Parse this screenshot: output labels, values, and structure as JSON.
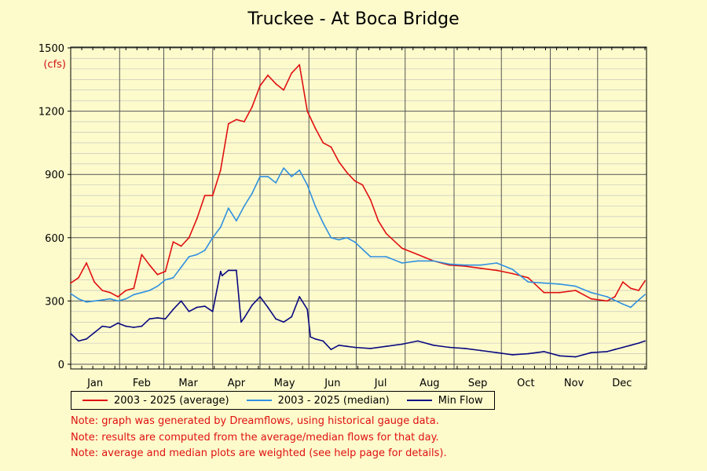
{
  "chart_data": {
    "type": "line",
    "title": "Truckee - At Boca Bridge",
    "ylabel": "(cfs)",
    "ylim": [
      0,
      1500
    ],
    "yticks": [
      0,
      300,
      600,
      900,
      1200,
      1500
    ],
    "x_domain": [
      "Jan 1",
      "Dec 31"
    ],
    "months": [
      "Jan",
      "Feb",
      "Mar",
      "Apr",
      "May",
      "Jun",
      "Jul",
      "Aug",
      "Sep",
      "Oct",
      "Nov",
      "Dec"
    ],
    "grid": true,
    "legend_position": "bottom",
    "series": [
      {
        "name": "2003 - 2025 (average)",
        "color": "#e01010",
        "x_day": [
          0,
          5,
          10,
          15,
          20,
          25,
          30,
          35,
          40,
          45,
          50,
          55,
          60,
          65,
          70,
          75,
          80,
          85,
          90,
          95,
          100,
          105,
          110,
          115,
          120,
          125,
          130,
          135,
          140,
          145,
          150,
          155,
          160,
          165,
          170,
          175,
          180,
          185,
          190,
          195,
          200,
          210,
          220,
          230,
          240,
          250,
          260,
          270,
          280,
          290,
          300,
          310,
          320,
          330,
          340,
          345,
          350,
          355,
          360,
          364
        ],
        "values": [
          385,
          410,
          480,
          390,
          350,
          340,
          320,
          350,
          360,
          520,
          470,
          425,
          440,
          580,
          560,
          600,
          690,
          800,
          800,
          920,
          1140,
          1160,
          1150,
          1220,
          1320,
          1370,
          1330,
          1300,
          1380,
          1420,
          1200,
          1120,
          1050,
          1030,
          960,
          910,
          870,
          850,
          780,
          680,
          620,
          550,
          520,
          490,
          470,
          465,
          455,
          445,
          430,
          410,
          340,
          340,
          350,
          310,
          300,
          320,
          390,
          360,
          350,
          395
        ]
      },
      {
        "name": "2003 - 2025 (median)",
        "color": "#3090e0",
        "x_day": [
          0,
          5,
          10,
          15,
          20,
          25,
          30,
          35,
          40,
          45,
          50,
          55,
          60,
          65,
          70,
          75,
          80,
          85,
          90,
          95,
          100,
          105,
          110,
          115,
          120,
          125,
          130,
          135,
          140,
          145,
          150,
          155,
          160,
          165,
          170,
          175,
          180,
          190,
          200,
          210,
          220,
          230,
          240,
          250,
          260,
          270,
          280,
          290,
          300,
          310,
          320,
          330,
          340,
          350,
          355,
          360,
          364
        ],
        "values": [
          335,
          310,
          295,
          300,
          305,
          310,
          300,
          310,
          330,
          340,
          350,
          370,
          400,
          410,
          460,
          510,
          520,
          540,
          600,
          650,
          740,
          680,
          750,
          810,
          890,
          890,
          860,
          930,
          890,
          920,
          850,
          750,
          670,
          600,
          590,
          600,
          580,
          510,
          510,
          480,
          490,
          490,
          475,
          470,
          470,
          480,
          450,
          390,
          385,
          380,
          370,
          340,
          320,
          285,
          270,
          305,
          330
        ]
      },
      {
        "name": "Min Flow",
        "color": "#0a0a80",
        "x_day": [
          0,
          5,
          10,
          15,
          20,
          25,
          30,
          35,
          40,
          45,
          50,
          55,
          60,
          65,
          70,
          75,
          80,
          85,
          90,
          95,
          96,
          100,
          105,
          108,
          110,
          115,
          120,
          125,
          130,
          135,
          140,
          145,
          150,
          152,
          155,
          160,
          165,
          170,
          175,
          180,
          190,
          200,
          210,
          220,
          230,
          240,
          250,
          260,
          270,
          280,
          290,
          300,
          310,
          320,
          330,
          340,
          345,
          350,
          355,
          360,
          364
        ],
        "values": [
          145,
          110,
          120,
          150,
          180,
          175,
          195,
          180,
          175,
          180,
          215,
          220,
          215,
          260,
          300,
          250,
          270,
          275,
          250,
          440,
          420,
          445,
          445,
          200,
          220,
          280,
          320,
          270,
          215,
          200,
          225,
          320,
          260,
          130,
          120,
          110,
          70,
          90,
          85,
          80,
          75,
          85,
          95,
          110,
          90,
          80,
          75,
          65,
          55,
          45,
          50,
          60,
          40,
          35,
          55,
          60,
          70,
          80,
          90,
          100,
          110
        ]
      }
    ]
  },
  "notes": [
    "Note: graph was generated by Dreamflows, using historical gauge data.",
    "Note: results are computed from the average/median flows for that day.",
    "Note: average and median plots are weighted (see help page for details)."
  ]
}
